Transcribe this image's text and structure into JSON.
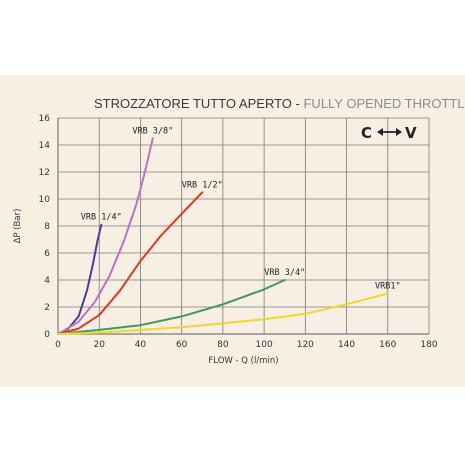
{
  "chart_data": {
    "type": "line",
    "title": "STROZZATORE TUTTO APERTO",
    "separator": " - ",
    "subtitle": "FULLY OPENED THROTTLE",
    "corner_left": "C",
    "corner_right": "V",
    "corner_arrow_icon": "double-arrow-icon",
    "xlabel": "FLOW - Q (l/min)",
    "ylabel": "ΔP (Bar)",
    "xlim": [
      0,
      180
    ],
    "ylim": [
      0,
      16
    ],
    "x_ticks": [
      0,
      20,
      40,
      60,
      80,
      100,
      120,
      140,
      160,
      180
    ],
    "y_ticks": [
      0,
      2,
      4,
      6,
      8,
      10,
      12,
      14,
      16
    ],
    "grid": true,
    "background_color": "#f7efe3",
    "grid_color": "#7a7a7a",
    "series": [
      {
        "name": "VRB 1/4\"",
        "color": "#4a3c9c",
        "x": [
          0,
          5,
          10,
          14,
          17,
          19,
          21
        ],
        "y": [
          0,
          0.4,
          1.3,
          3.2,
          5.2,
          6.8,
          8.1
        ]
      },
      {
        "name": "VRB 3/8\"",
        "color": "#b772c2",
        "x": [
          0,
          10,
          18,
          25,
          32,
          38,
          42,
          46
        ],
        "y": [
          0,
          0.9,
          2.4,
          4.3,
          6.9,
          9.6,
          11.9,
          14.5
        ]
      },
      {
        "name": "VRB 1/2\"",
        "color": "#d93a25",
        "x": [
          0,
          10,
          20,
          30,
          40,
          50,
          60,
          70
        ],
        "y": [
          0,
          0.4,
          1.4,
          3.2,
          5.4,
          7.3,
          8.9,
          10.5
        ]
      },
      {
        "name": "VRB 3/4\"",
        "color": "#3a9a5a",
        "x": [
          0,
          20,
          40,
          60,
          80,
          100,
          110
        ],
        "y": [
          0,
          0.3,
          0.65,
          1.3,
          2.2,
          3.3,
          4.0
        ]
      },
      {
        "name": "VRB1\"",
        "color": "#f0d828",
        "x": [
          0,
          20,
          40,
          60,
          80,
          100,
          120,
          140,
          160
        ],
        "y": [
          0,
          0.1,
          0.3,
          0.5,
          0.8,
          1.1,
          1.5,
          2.2,
          3.0
        ]
      }
    ]
  }
}
